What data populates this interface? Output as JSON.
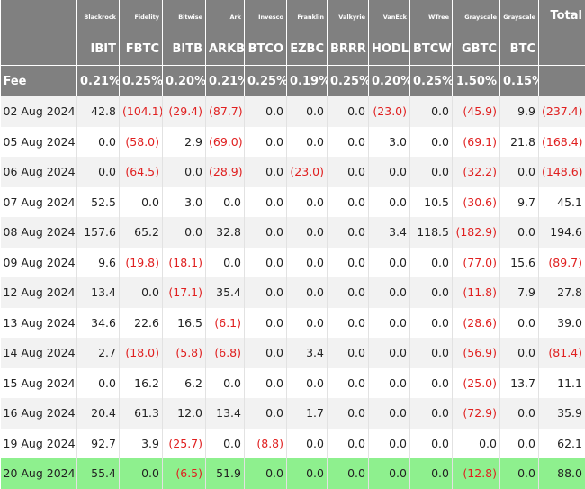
{
  "table": {
    "issuers": [
      "Blackrock",
      "Fidelity",
      "Bitwise",
      "Ark",
      "Invesco",
      "Franklin",
      "Valkyrie",
      "VanEck",
      "WTree",
      "Grayscale",
      "Grayscale"
    ],
    "total_label": "Total",
    "tickers": [
      "IBIT",
      "FBTC",
      "BITB",
      "ARKB",
      "BTCO",
      "EZBC",
      "BRRR",
      "HODL",
      "BTCW",
      "GBTC",
      "BTC"
    ],
    "fee_label": "Fee",
    "fees": [
      "0.21%",
      "0.25%",
      "0.20%",
      "0.21%",
      "0.25%",
      "0.19%",
      "0.25%",
      "0.20%",
      "0.25%",
      "1.50%",
      "0.15%"
    ],
    "rows": [
      {
        "date": "02 Aug 2024",
        "values": [
          "42.8",
          "(104.1)",
          "(29.4)",
          "(87.7)",
          "0.0",
          "0.0",
          "0.0",
          "(23.0)",
          "0.0",
          "(45.9)",
          "9.9",
          "(237.4)"
        ]
      },
      {
        "date": "05 Aug 2024",
        "values": [
          "0.0",
          "(58.0)",
          "2.9",
          "(69.0)",
          "0.0",
          "0.0",
          "0.0",
          "3.0",
          "0.0",
          "(69.1)",
          "21.8",
          "(168.4)"
        ]
      },
      {
        "date": "06 Aug 2024",
        "values": [
          "0.0",
          "(64.5)",
          "0.0",
          "(28.9)",
          "0.0",
          "(23.0)",
          "0.0",
          "0.0",
          "0.0",
          "(32.2)",
          "0.0",
          "(148.6)"
        ]
      },
      {
        "date": "07 Aug 2024",
        "values": [
          "52.5",
          "0.0",
          "3.0",
          "0.0",
          "0.0",
          "0.0",
          "0.0",
          "0.0",
          "10.5",
          "(30.6)",
          "9.7",
          "45.1"
        ]
      },
      {
        "date": "08 Aug 2024",
        "values": [
          "157.6",
          "65.2",
          "0.0",
          "32.8",
          "0.0",
          "0.0",
          "0.0",
          "3.4",
          "118.5",
          "(182.9)",
          "0.0",
          "194.6"
        ]
      },
      {
        "date": "09 Aug 2024",
        "values": [
          "9.6",
          "(19.8)",
          "(18.1)",
          "0.0",
          "0.0",
          "0.0",
          "0.0",
          "0.0",
          "0.0",
          "(77.0)",
          "15.6",
          "(89.7)"
        ]
      },
      {
        "date": "12 Aug 2024",
        "values": [
          "13.4",
          "0.0",
          "(17.1)",
          "35.4",
          "0.0",
          "0.0",
          "0.0",
          "0.0",
          "0.0",
          "(11.8)",
          "7.9",
          "27.8"
        ]
      },
      {
        "date": "13 Aug 2024",
        "values": [
          "34.6",
          "22.6",
          "16.5",
          "(6.1)",
          "0.0",
          "0.0",
          "0.0",
          "0.0",
          "0.0",
          "(28.6)",
          "0.0",
          "39.0"
        ]
      },
      {
        "date": "14 Aug 2024",
        "values": [
          "2.7",
          "(18.0)",
          "(5.8)",
          "(6.8)",
          "0.0",
          "3.4",
          "0.0",
          "0.0",
          "0.0",
          "(56.9)",
          "0.0",
          "(81.4)"
        ]
      },
      {
        "date": "15 Aug 2024",
        "values": [
          "0.0",
          "16.2",
          "6.2",
          "0.0",
          "0.0",
          "0.0",
          "0.0",
          "0.0",
          "0.0",
          "(25.0)",
          "13.7",
          "11.1"
        ]
      },
      {
        "date": "16 Aug 2024",
        "values": [
          "20.4",
          "61.3",
          "12.0",
          "13.4",
          "0.0",
          "1.7",
          "0.0",
          "0.0",
          "0.0",
          "(72.9)",
          "0.0",
          "35.9"
        ]
      },
      {
        "date": "19 Aug 2024",
        "values": [
          "92.7",
          "3.9",
          "(25.7)",
          "0.0",
          "(8.8)",
          "0.0",
          "0.0",
          "0.0",
          "0.0",
          "0.0",
          "0.0",
          "62.1"
        ]
      },
      {
        "date": "20 Aug 2024",
        "values": [
          "55.4",
          "0.0",
          "(6.5)",
          "51.9",
          "0.0",
          "0.0",
          "0.0",
          "0.0",
          "0.0",
          "(12.8)",
          "0.0",
          "88.0"
        ]
      }
    ]
  }
}
